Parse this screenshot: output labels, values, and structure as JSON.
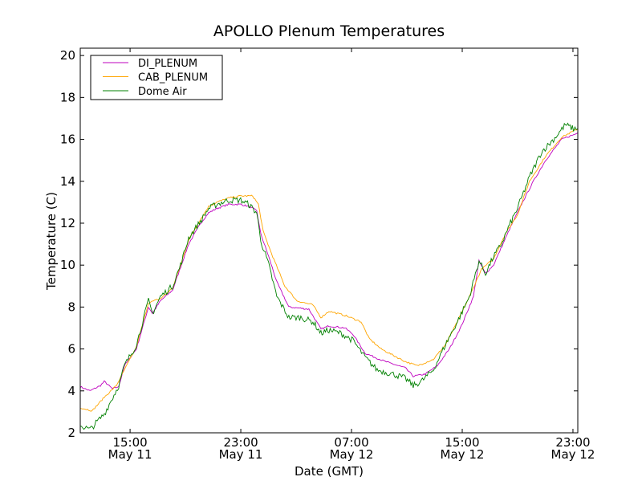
{
  "chart_data": {
    "type": "line",
    "title": "APOLLO Plenum Temperatures",
    "xlabel": "Date (GMT)",
    "ylabel": "Temperature (C)",
    "x_units": "hours since May 11 00:00 GMT",
    "xlim": [
      11.4,
      47.35
    ],
    "ylim": [
      2,
      20.35
    ],
    "yticks": [
      2,
      4,
      6,
      8,
      10,
      12,
      14,
      16,
      18,
      20
    ],
    "xticks": [
      {
        "value": 15,
        "time": "15:00",
        "date": "May 11"
      },
      {
        "value": 23,
        "time": "23:00",
        "date": "May 11"
      },
      {
        "value": 31,
        "time": "07:00",
        "date": "May 12"
      },
      {
        "value": 39,
        "time": "15:00",
        "date": "May 12"
      },
      {
        "value": 47,
        "time": "23:00",
        "date": "May 12"
      }
    ],
    "grid": false,
    "legend_position": "top-left",
    "series": [
      {
        "name": "DI_PLENUM",
        "color": "#bf00bf",
        "noise": 0.04,
        "points": [
          [
            11.4,
            4.2
          ],
          [
            12.1,
            4.0
          ],
          [
            12.85,
            4.25
          ],
          [
            13.14,
            4.45
          ],
          [
            13.72,
            4.1
          ],
          [
            14.18,
            4.2
          ],
          [
            14.59,
            5.2
          ],
          [
            15.46,
            6.0
          ],
          [
            16.33,
            8.0
          ],
          [
            16.62,
            7.7
          ],
          [
            17.2,
            8.3
          ],
          [
            18.07,
            8.8
          ],
          [
            18.65,
            9.9
          ],
          [
            19.23,
            11.0
          ],
          [
            20.1,
            12.0
          ],
          [
            20.68,
            12.5
          ],
          [
            21.26,
            12.7
          ],
          [
            22.12,
            12.9
          ],
          [
            22.99,
            12.9
          ],
          [
            23.57,
            12.8
          ],
          [
            24.15,
            12.6
          ],
          [
            24.44,
            11.5
          ],
          [
            25.02,
            10.4
          ],
          [
            25.6,
            9.2
          ],
          [
            26.47,
            8.0
          ],
          [
            27.92,
            7.9
          ],
          [
            28.79,
            6.95
          ],
          [
            29.37,
            7.1
          ],
          [
            30.53,
            7.0
          ],
          [
            31.11,
            6.7
          ],
          [
            31.98,
            5.8
          ],
          [
            33.43,
            5.4
          ],
          [
            34.88,
            5.1
          ],
          [
            35.46,
            4.7
          ],
          [
            36.33,
            4.8
          ],
          [
            37.2,
            5.2
          ],
          [
            38.07,
            6.0
          ],
          [
            38.94,
            7.1
          ],
          [
            39.81,
            8.5
          ],
          [
            40.21,
            10.2
          ],
          [
            40.68,
            9.6
          ],
          [
            41.26,
            10.0
          ],
          [
            42.41,
            11.7
          ],
          [
            43.28,
            12.9
          ],
          [
            44.14,
            14.0
          ],
          [
            45.02,
            15.0
          ],
          [
            46.18,
            16.0
          ],
          [
            47.34,
            16.3
          ]
        ]
      },
      {
        "name": "CAB_PLENUM",
        "color": "#ffa500",
        "noise": 0.04,
        "points": [
          [
            11.4,
            3.2
          ],
          [
            12.27,
            3.05
          ],
          [
            13.14,
            3.7
          ],
          [
            14.01,
            4.25
          ],
          [
            14.59,
            5.0
          ],
          [
            15.46,
            6.1
          ],
          [
            16.33,
            8.2
          ],
          [
            17.2,
            8.4
          ],
          [
            18.07,
            8.9
          ],
          [
            18.65,
            10.0
          ],
          [
            19.23,
            11.2
          ],
          [
            20.1,
            12.2
          ],
          [
            20.68,
            12.8
          ],
          [
            21.26,
            13.0
          ],
          [
            22.12,
            13.2
          ],
          [
            22.99,
            13.3
          ],
          [
            23.86,
            13.3
          ],
          [
            24.27,
            12.9
          ],
          [
            24.62,
            11.6
          ],
          [
            25.31,
            10.4
          ],
          [
            26.18,
            9.0
          ],
          [
            27.05,
            8.3
          ],
          [
            28.21,
            8.1
          ],
          [
            28.79,
            7.5
          ],
          [
            29.37,
            7.8
          ],
          [
            30.53,
            7.6
          ],
          [
            31.69,
            7.3
          ],
          [
            32.27,
            6.5
          ],
          [
            33.14,
            6.0
          ],
          [
            34.01,
            5.7
          ],
          [
            34.88,
            5.4
          ],
          [
            35.75,
            5.2
          ],
          [
            36.91,
            5.5
          ],
          [
            37.78,
            6.2
          ],
          [
            38.65,
            7.3
          ],
          [
            39.52,
            8.5
          ],
          [
            40.39,
            9.8
          ],
          [
            41.26,
            10.3
          ],
          [
            42.12,
            11.5
          ],
          [
            42.99,
            12.4
          ],
          [
            43.86,
            14.0
          ],
          [
            45.02,
            15.2
          ],
          [
            46.18,
            16.1
          ],
          [
            47.34,
            16.5
          ]
        ]
      },
      {
        "name": "Dome Air",
        "color": "#008000",
        "noise": 0.15,
        "points": [
          [
            11.4,
            2.35
          ],
          [
            12.1,
            2.15
          ],
          [
            13.14,
            2.9
          ],
          [
            14.18,
            4.25
          ],
          [
            14.59,
            5.2
          ],
          [
            15.46,
            6.2
          ],
          [
            16.33,
            8.3
          ],
          [
            16.62,
            7.7
          ],
          [
            17.2,
            8.5
          ],
          [
            18.07,
            9.0
          ],
          [
            18.65,
            10.0
          ],
          [
            19.23,
            11.3
          ],
          [
            20.1,
            12.1
          ],
          [
            20.68,
            12.7
          ],
          [
            21.26,
            12.9
          ],
          [
            22.12,
            13.1
          ],
          [
            22.99,
            13.1
          ],
          [
            23.57,
            12.9
          ],
          [
            24.15,
            12.5
          ],
          [
            24.44,
            11.2
          ],
          [
            25.02,
            10.0
          ],
          [
            25.6,
            8.5
          ],
          [
            26.47,
            7.5
          ],
          [
            27.34,
            7.5
          ],
          [
            28.21,
            7.3
          ],
          [
            28.79,
            6.75
          ],
          [
            29.37,
            6.9
          ],
          [
            30.24,
            6.75
          ],
          [
            31.11,
            6.4
          ],
          [
            31.98,
            5.6
          ],
          [
            32.85,
            5.0
          ],
          [
            34.01,
            4.8
          ],
          [
            34.88,
            4.6
          ],
          [
            35.46,
            4.25
          ],
          [
            36.04,
            4.45
          ],
          [
            36.91,
            5.0
          ],
          [
            37.78,
            6.2
          ],
          [
            38.65,
            7.3
          ],
          [
            39.52,
            8.5
          ],
          [
            40.21,
            10.2
          ],
          [
            40.68,
            9.6
          ],
          [
            41.26,
            10.4
          ],
          [
            41.83,
            11.0
          ],
          [
            42.41,
            11.9
          ],
          [
            42.99,
            12.7
          ],
          [
            43.86,
            14.2
          ],
          [
            44.73,
            15.4
          ],
          [
            45.6,
            16.0
          ],
          [
            46.46,
            16.7
          ],
          [
            47.04,
            16.5
          ],
          [
            47.34,
            16.5
          ]
        ]
      }
    ]
  }
}
